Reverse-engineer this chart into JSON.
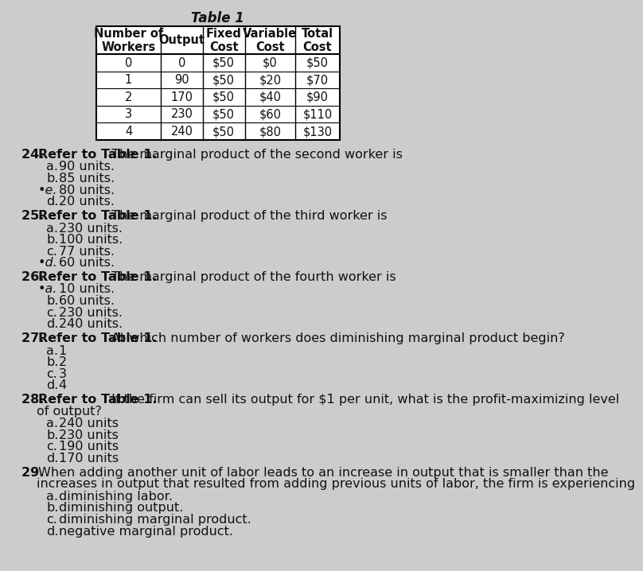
{
  "title": "Table 1",
  "table_headers": [
    "Number of\nWorkers",
    "Output",
    "Fixed\nCost",
    "Variable\nCost",
    "Total\nCost"
  ],
  "table_rows": [
    [
      "0",
      "0",
      "$50",
      "$0",
      "$50"
    ],
    [
      "1",
      "90",
      "$50",
      "$20",
      "$70"
    ],
    [
      "2",
      "170",
      "$50",
      "$40",
      "$90"
    ],
    [
      "3",
      "230",
      "$50",
      "$60",
      "$110"
    ],
    [
      "4",
      "240",
      "$50",
      "$80",
      "$130"
    ]
  ],
  "questions": [
    {
      "number": "24. ",
      "bold_ref": "Refer to Table 1.",
      "rest": " The marginal product of the second worker is",
      "line2": null,
      "options": [
        {
          "label": "a.",
          "text": "  90 units.",
          "marked": false
        },
        {
          "label": "b.",
          "text": "  85 units.",
          "marked": false
        },
        {
          "label": "•e.",
          "text": "  80 units.",
          "marked": true
        },
        {
          "label": "d.",
          "text": "  20 units.",
          "marked": false
        }
      ]
    },
    {
      "number": "25. ",
      "bold_ref": "Refer to Table 1.",
      "rest": " The marginal product of the third worker is",
      "line2": null,
      "options": [
        {
          "label": "a.",
          "text": "  230 units.",
          "marked": false
        },
        {
          "label": "b.",
          "text": "  100 units.",
          "marked": false
        },
        {
          "label": "c.",
          "text": "  77 units.",
          "marked": false
        },
        {
          "label": "•d.",
          "text": "  60 units.",
          "marked": true
        }
      ]
    },
    {
      "number": "26. ",
      "bold_ref": "Refer to Table 1.",
      "rest": " The marginal product of the fourth worker is",
      "line2": null,
      "options": [
        {
          "label": "•a.",
          "text": "  10 units.",
          "marked": true
        },
        {
          "label": "b.",
          "text": "  60 units.",
          "marked": false
        },
        {
          "label": "c.",
          "text": "  230 units.",
          "marked": false
        },
        {
          "label": "d.",
          "text": "  240 units.",
          "marked": false
        }
      ]
    },
    {
      "number": "27. ",
      "bold_ref": "Refer to Table 1.",
      "rest": " At which number of workers does diminishing marginal product begin?",
      "line2": null,
      "options": [
        {
          "label": "a.",
          "text": "  1",
          "marked": false
        },
        {
          "label": "b.",
          "text": "  2",
          "marked": false
        },
        {
          "label": "c.",
          "text": "  3",
          "marked": false
        },
        {
          "label": "d.",
          "text": "  4",
          "marked": false
        }
      ]
    },
    {
      "number": "28. ",
      "bold_ref": "Refer to Table 1.",
      "rest": " If the firm can sell its output for $1 per unit, what is the profit-maximizing level",
      "line2": "of output?",
      "options": [
        {
          "label": "a.",
          "text": "  240 units",
          "marked": false
        },
        {
          "label": "b.",
          "text": "  230 units",
          "marked": false
        },
        {
          "label": "c.",
          "text": "  190 units",
          "marked": false
        },
        {
          "label": "d.",
          "text": "  170 units",
          "marked": false
        }
      ]
    },
    {
      "number": "29. ",
      "bold_ref": null,
      "rest": "When adding another unit of labor leads to an increase in output that is smaller than the",
      "line2": "increases in output that resulted from adding previous units of labor, the firm is experiencing",
      "options": [
        {
          "label": "a.",
          "text": "  diminishing labor.",
          "marked": false
        },
        {
          "label": "b.",
          "text": "  diminishing output.",
          "marked": false
        },
        {
          "label": "c.",
          "text": "  diminishing marginal product.",
          "marked": false
        },
        {
          "label": "d.",
          "text": "  negative marginal product.",
          "marked": false
        }
      ]
    }
  ],
  "bg_color": "#cccccc",
  "text_color": "#111111",
  "fs_table": 10.5,
  "fs_body": 11.5
}
